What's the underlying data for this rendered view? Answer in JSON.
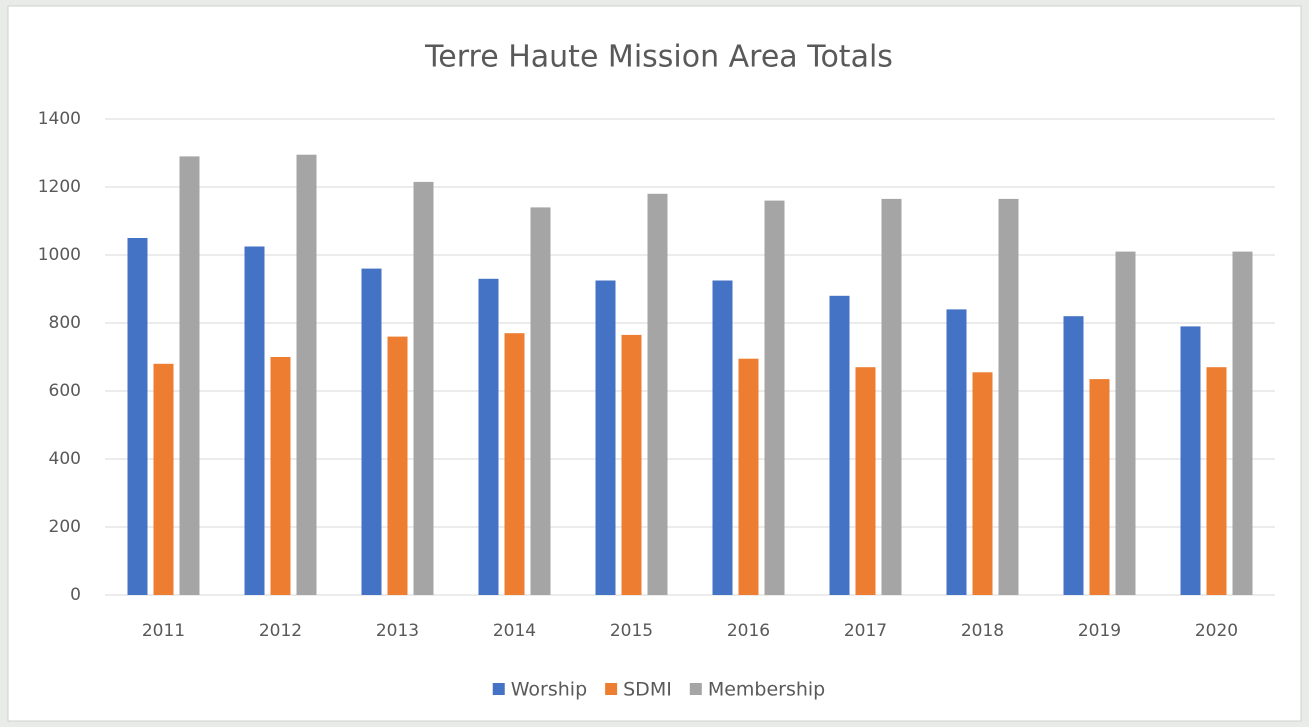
{
  "chart_data": {
    "type": "bar",
    "title": "Terre Haute Mission Area Totals",
    "categories": [
      "2011",
      "2012",
      "2013",
      "2014",
      "2015",
      "2016",
      "2017",
      "2018",
      "2019",
      "2020"
    ],
    "series": [
      {
        "name": "Worship",
        "color": "#4472c4",
        "values": [
          1050,
          1025,
          960,
          930,
          925,
          925,
          880,
          840,
          820,
          790
        ]
      },
      {
        "name": "SDMI",
        "color": "#ed7d31",
        "values": [
          680,
          700,
          760,
          770,
          765,
          695,
          670,
          655,
          635,
          670
        ]
      },
      {
        "name": "Membership",
        "color": "#a5a5a5",
        "values": [
          1290,
          1295,
          1215,
          1140,
          1180,
          1160,
          1165,
          1165,
          1010,
          1010
        ]
      }
    ],
    "ylim": [
      0,
      1400
    ],
    "yticks": [
      0,
      200,
      400,
      600,
      800,
      1000,
      1200,
      1400
    ],
    "grid": true,
    "legend": "bottom"
  }
}
